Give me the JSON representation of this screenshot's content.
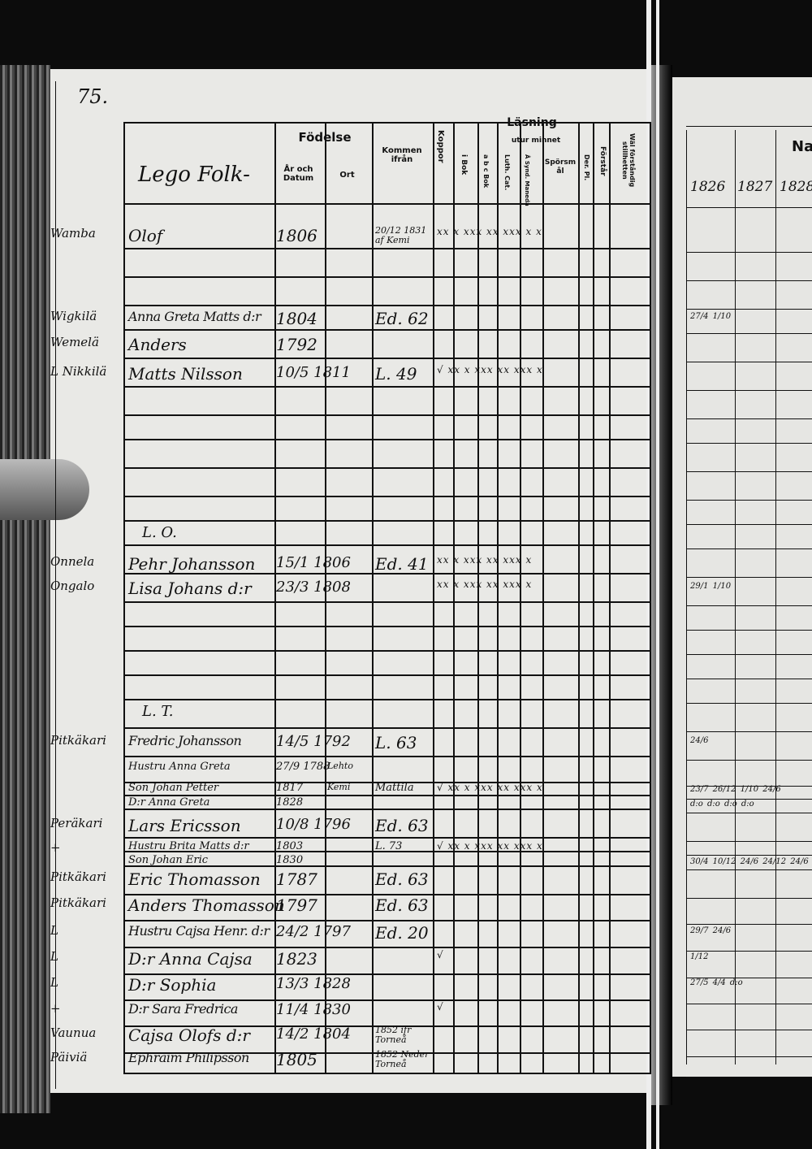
{
  "page_number": "75.",
  "section_title": "Lego Folk-",
  "headers": {
    "fodelse": "Födelse",
    "ar_datum": "År och Datum",
    "ort": "Ort",
    "kommen": "Kommen ifrån",
    "koppor": "Koppor",
    "lasning": "Läsning",
    "utur_minnet": "utur minnet",
    "i_bok": "i Bok",
    "abc_bok": "a b c Bok",
    "luth_cat": "Luth. Cat.",
    "a_syndamaneda": "Å Synd. Maneda",
    "sporsmal": "Spörsmål",
    "der_pl": "Der. Pl.",
    "forstar": "Förstår",
    "val_stalld": "Wäl förståndig stillhetten"
  },
  "right_page": {
    "header": "Na",
    "years": [
      "1826",
      "1827",
      "1828"
    ],
    "marks": [
      {
        "row": 1,
        "text": "27/4 1/10"
      },
      {
        "row": 5,
        "text": "29/1 1/10"
      },
      {
        "row": 6,
        "text": "24/6"
      },
      {
        "row": 8,
        "text": "23/7 26/12 1/10 24/6"
      },
      {
        "row": 9,
        "text": "d:o d:o d:o d:o"
      },
      {
        "row": 12,
        "text": "30/4 10/12 24/6 24/12 24/6"
      },
      {
        "row": 15,
        "text": "29/7 24/6"
      },
      {
        "row": 16,
        "text": "1/12"
      },
      {
        "row": 17,
        "text": "27/5 4/4 d:o"
      }
    ]
  },
  "sections": [
    "L. O.",
    "L. T."
  ],
  "entries": [
    {
      "village": "Wamba",
      "name": "Olof",
      "birth": "1806",
      "ort": "",
      "from": "20/12 1831 af Kemi",
      "reading": "xx  x  xxx  xx  xxx  x  x"
    },
    {
      "village": "Wigkilä",
      "name": "Anna Greta Matts d:r",
      "birth": "1804",
      "ort": "",
      "from": "Ed. 62",
      "reading": ""
    },
    {
      "village": "Wemelä",
      "name": "Anders",
      "birth": "1792",
      "ort": "",
      "from": "",
      "reading": ""
    },
    {
      "village": "L Nikkilä",
      "name": "Matts Nilsson",
      "birth": "10/5 1811",
      "ort": "",
      "from": "L. 49",
      "reading": "√ xx  x  xxx  xx  xxx  x"
    },
    {
      "village": "Onnela",
      "name": "Pehr Johansson",
      "birth": "15/1 1806",
      "ort": "",
      "from": "Ed. 41",
      "reading": "xx  x  xxx  xx  xxx  x"
    },
    {
      "village": "Ongalo",
      "name": "Lisa Johans d:r",
      "birth": "23/3 1808",
      "ort": "",
      "from": "",
      "reading": "xx  x  xxx  xx  xxx  x"
    },
    {
      "village": "Pitkäkari",
      "name": "Fredric Johansson",
      "birth": "14/5 1792",
      "ort": "",
      "from": "L. 63",
      "reading": ""
    },
    {
      "village": "",
      "name": "Hustru Anna Greta",
      "birth": "27/9 1788",
      "ort": "Lehto",
      "from": "",
      "reading": ""
    },
    {
      "village": "",
      "name": "Son Johan Petter",
      "birth": "1817",
      "ort": "Kemi",
      "from": "Mattila",
      "reading": "√ xx x xxx xx xxx x"
    },
    {
      "village": "",
      "name": "D:r Anna Greta",
      "birth": "1828",
      "ort": "",
      "from": "",
      "reading": ""
    },
    {
      "village": "Peräkari",
      "name": "Lars Ericsson",
      "birth": "10/8 1796",
      "ort": "",
      "from": "Ed. 63",
      "reading": ""
    },
    {
      "village": "+",
      "name": "Hustru Brita Matts d:r",
      "birth": "1803",
      "ort": "",
      "from": "L. 73",
      "reading": "√ xx x xxx xx xxx x"
    },
    {
      "village": "",
      "name": "Son Johan Eric",
      "birth": "1830",
      "ort": "",
      "from": "",
      "reading": ""
    },
    {
      "village": "Pitkäkari",
      "name": "Eric Thomasson",
      "birth": "1787",
      "ort": "",
      "from": "Ed. 63",
      "reading": ""
    },
    {
      "village": "Pitkäkari",
      "name": "Anders Thomasson",
      "birth": "1797",
      "ort": "",
      "from": "Ed. 63",
      "reading": ""
    },
    {
      "village": "L",
      "name": "Hustru Cajsa Henr. d:r",
      "birth": "24/2 1797",
      "ort": "",
      "from": "Ed. 20",
      "reading": ""
    },
    {
      "village": "L",
      "name": "D:r Anna Cajsa",
      "birth": "1823",
      "ort": "",
      "from": "",
      "reading": "√"
    },
    {
      "village": "L",
      "name": "D:r Sophia",
      "birth": "13/3 1828",
      "ort": "",
      "from": "",
      "reading": ""
    },
    {
      "village": "+",
      "name": "D:r Sara Fredrica",
      "birth": "11/4 1830",
      "ort": "",
      "from": "",
      "reading": "√"
    },
    {
      "village": "Vaunua",
      "name": "Cajsa Olofs d:r",
      "birth": "14/2 1804",
      "ort": "",
      "from": "1852 ifr Torneå",
      "reading": ""
    },
    {
      "village": "Päiviä",
      "name": "Ephraim Philipsson",
      "birth": "1805",
      "ort": "",
      "from": "1852 Neder Torneå",
      "reading": ""
    }
  ]
}
